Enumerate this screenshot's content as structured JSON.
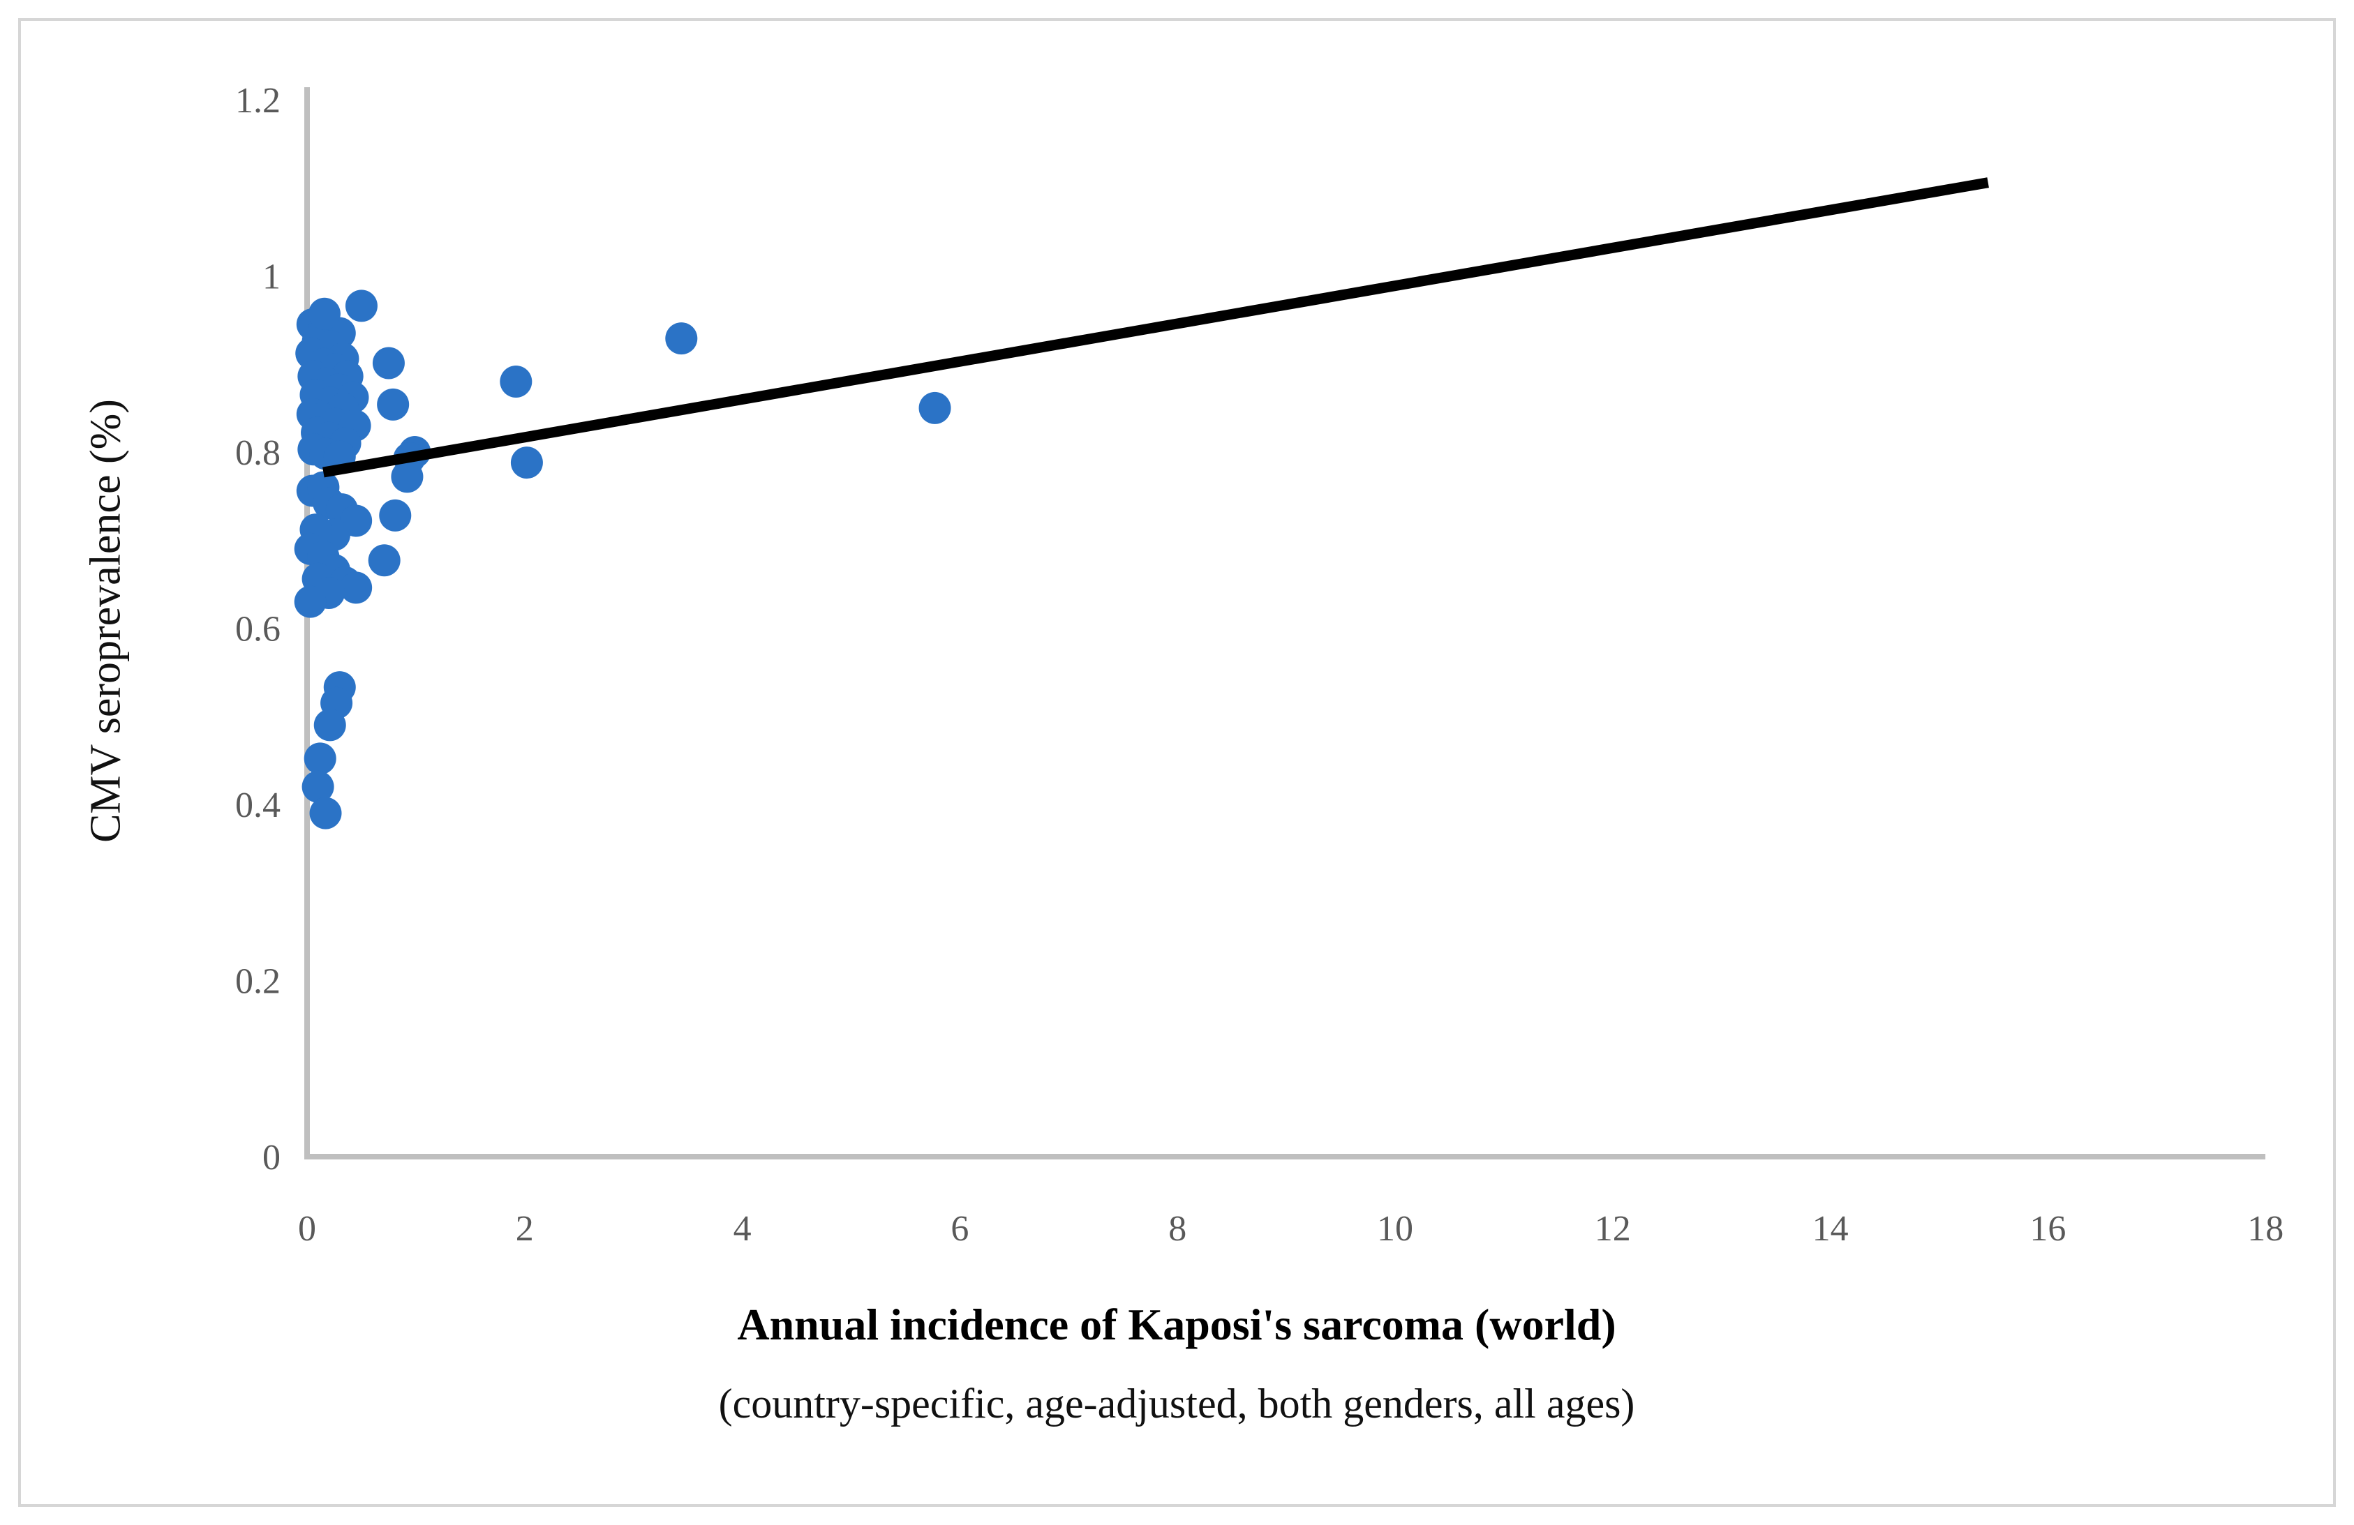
{
  "figure": {
    "background_color": "#ffffff",
    "border_color": "#d6d6d6"
  },
  "chart_data": {
    "type": "scatter",
    "title": "",
    "xlabel_line1": "Annual incidence of Kaposi's sarcoma (world)",
    "xlabel_line2": "(country-specific, age-adjusted, both genders, all ages)",
    "ylabel": "CMV seroprevalence (%)",
    "xlim": [
      0,
      18
    ],
    "ylim": [
      0,
      1.2
    ],
    "x_ticks": [
      0,
      2,
      4,
      6,
      8,
      10,
      12,
      14,
      16,
      18
    ],
    "x_tick_labels": [
      "0",
      "2",
      "4",
      "6",
      "8",
      "10",
      "12",
      "14",
      "16",
      "18"
    ],
    "y_ticks": [
      0,
      0.2,
      0.4,
      0.6,
      0.8,
      1,
      1.2
    ],
    "y_tick_labels": [
      "0",
      "0.2",
      "0.4",
      "0.6",
      "0.8",
      "1",
      "1.2"
    ],
    "grid": false,
    "legend": "none",
    "point_color": "#2b73c6",
    "axis_line_color": "#bfbfbf",
    "tick_label_color": "#595959",
    "trendline": {
      "color": "#000000",
      "x1": 0.15,
      "y1": 0.777,
      "x2": 15.45,
      "y2": 1.106
    },
    "points": [
      [
        0.05,
        0.945
      ],
      [
        0.16,
        0.94
      ],
      [
        0.3,
        0.935
      ],
      [
        0.1,
        0.926
      ],
      [
        0.22,
        0.92
      ],
      [
        0.04,
        0.912
      ],
      [
        0.33,
        0.906
      ],
      [
        0.15,
        0.9
      ],
      [
        0.26,
        0.894
      ],
      [
        0.06,
        0.886
      ],
      [
        0.37,
        0.886
      ],
      [
        0.18,
        0.878
      ],
      [
        0.29,
        0.871
      ],
      [
        0.08,
        0.865
      ],
      [
        0.42,
        0.862
      ],
      [
        0.21,
        0.856
      ],
      [
        0.33,
        0.849
      ],
      [
        0.05,
        0.843
      ],
      [
        0.14,
        0.838
      ],
      [
        0.26,
        0.832
      ],
      [
        0.44,
        0.83
      ],
      [
        0.09,
        0.822
      ],
      [
        0.2,
        0.816
      ],
      [
        0.35,
        0.81
      ],
      [
        0.06,
        0.803
      ],
      [
        0.17,
        0.798
      ],
      [
        0.3,
        0.795
      ],
      [
        0.5,
        0.966
      ],
      [
        0.16,
        0.957
      ],
      [
        0.75,
        0.901
      ],
      [
        0.79,
        0.854
      ],
      [
        0.99,
        0.8
      ],
      [
        0.94,
        0.793
      ],
      [
        0.92,
        0.772
      ],
      [
        1.92,
        0.88
      ],
      [
        2.02,
        0.788
      ],
      [
        3.44,
        0.929
      ],
      [
        5.77,
        0.85
      ],
      [
        0.05,
        0.756
      ],
      [
        0.15,
        0.76
      ],
      [
        0.2,
        0.742
      ],
      [
        0.32,
        0.735
      ],
      [
        0.45,
        0.722
      ],
      [
        0.81,
        0.728
      ],
      [
        0.25,
        0.706
      ],
      [
        0.08,
        0.712
      ],
      [
        0.03,
        0.69
      ],
      [
        0.15,
        0.681
      ],
      [
        0.71,
        0.677
      ],
      [
        0.25,
        0.666
      ],
      [
        0.1,
        0.656
      ],
      [
        0.35,
        0.652
      ],
      [
        0.45,
        0.646
      ],
      [
        0.2,
        0.64
      ],
      [
        0.03,
        0.63
      ],
      [
        0.3,
        0.533
      ],
      [
        0.27,
        0.515
      ],
      [
        0.21,
        0.49
      ],
      [
        0.12,
        0.452
      ],
      [
        0.1,
        0.42
      ],
      [
        0.17,
        0.39
      ]
    ]
  }
}
